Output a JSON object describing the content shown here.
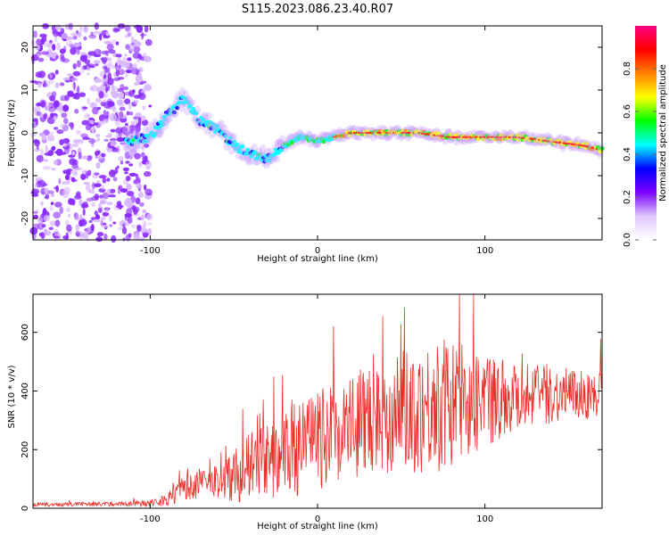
{
  "title": "S115.2023.086.23.40.R07",
  "chart_data": [
    {
      "type": "heatmap",
      "xlabel": "Height of straight line (km)",
      "ylabel": "Frequency (Hz)",
      "xlim": [
        -170,
        170
      ],
      "ylim": [
        -25,
        25
      ],
      "xticks": [
        -100,
        0,
        100
      ],
      "yticks": [
        -20,
        -10,
        0,
        10,
        20
      ],
      "colorbar": {
        "label": "Normalized spectral amplitude",
        "range": [
          0,
          1
        ],
        "ticks": [
          0.0,
          0.2,
          0.4,
          0.6,
          0.8
        ],
        "colors": [
          "#ffffff",
          "#e0c8ff",
          "#7a00ff",
          "#0000ff",
          "#00ffff",
          "#00ff00",
          "#ffff00",
          "#ff8000",
          "#ff0000",
          "#ff0080"
        ]
      },
      "ridge": {
        "x": [
          -110,
          -100,
          -90,
          -80,
          -70,
          -60,
          -50,
          -40,
          -30,
          -20,
          -10,
          0,
          10,
          20,
          40,
          60,
          80,
          100,
          120,
          140,
          160,
          170
        ],
        "y": [
          -2,
          -1,
          4,
          8,
          3,
          1,
          -3,
          -5,
          -6,
          -3,
          -1,
          -2,
          -1,
          0,
          0,
          0,
          -1,
          -1,
          -1,
          -2,
          -3,
          -4
        ]
      }
    },
    {
      "type": "line",
      "xlabel": "Height of straight line (km)",
      "ylabel": "SNR (10 * v/v)",
      "xlim": [
        -170,
        170
      ],
      "ylim": [
        0,
        730
      ],
      "xticks": [
        -100,
        0,
        100
      ],
      "yticks": [
        0,
        200,
        400,
        600
      ],
      "color": "#e8302a",
      "envelope": {
        "x": [
          -170,
          -120,
          -100,
          -90,
          -80,
          -70,
          -60,
          -50,
          -40,
          -30,
          -20,
          -10,
          0,
          10,
          20,
          30,
          40,
          50,
          60,
          70,
          80,
          90,
          100,
          110,
          120,
          130,
          140,
          150,
          160,
          170
        ],
        "mean": [
          12,
          15,
          18,
          30,
          70,
          80,
          90,
          110,
          140,
          160,
          180,
          200,
          230,
          260,
          280,
          300,
          320,
          330,
          340,
          350,
          360,
          370,
          375,
          380,
          385,
          390,
          390,
          385,
          380,
          390
        ],
        "amp": [
          6,
          8,
          12,
          25,
          40,
          50,
          60,
          90,
          120,
          130,
          140,
          160,
          170,
          170,
          180,
          190,
          200,
          210,
          220,
          230,
          220,
          200,
          170,
          140,
          120,
          110,
          100,
          90,
          80,
          90
        ]
      }
    }
  ]
}
